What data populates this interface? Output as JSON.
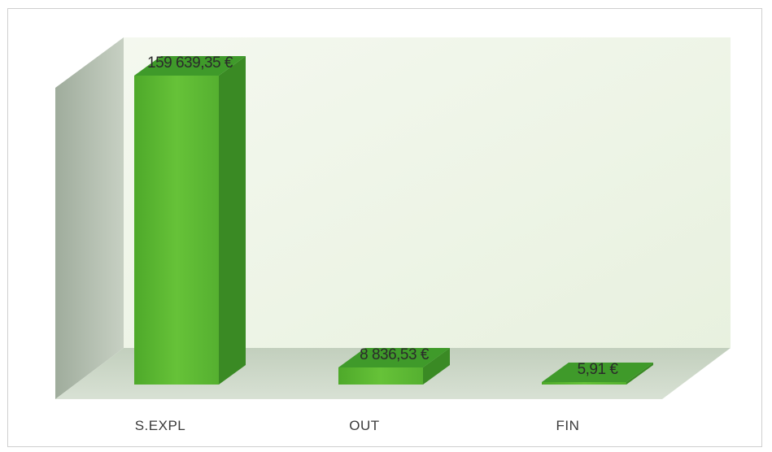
{
  "chart_data": {
    "type": "bar",
    "style": "3d-column",
    "categories": [
      "S.EXPL",
      "OUT",
      "FIN"
    ],
    "values": [
      159639.35,
      8836.53,
      5.91
    ],
    "data_labels": [
      "159 639,35 €",
      "8 836,53 €",
      "5,91 €"
    ],
    "title": "",
    "xlabel": "",
    "ylabel": "",
    "ylim": [
      0,
      159639.35
    ],
    "grid": false,
    "legend": "none",
    "colors": {
      "bar_front": "#5cb531",
      "bar_side": "#3a8a24",
      "bar_top": "#3f9a2a",
      "back_wall": "#edf5e6",
      "side_wall": "#b8c4b4",
      "floor": "#cdd8c8"
    }
  }
}
